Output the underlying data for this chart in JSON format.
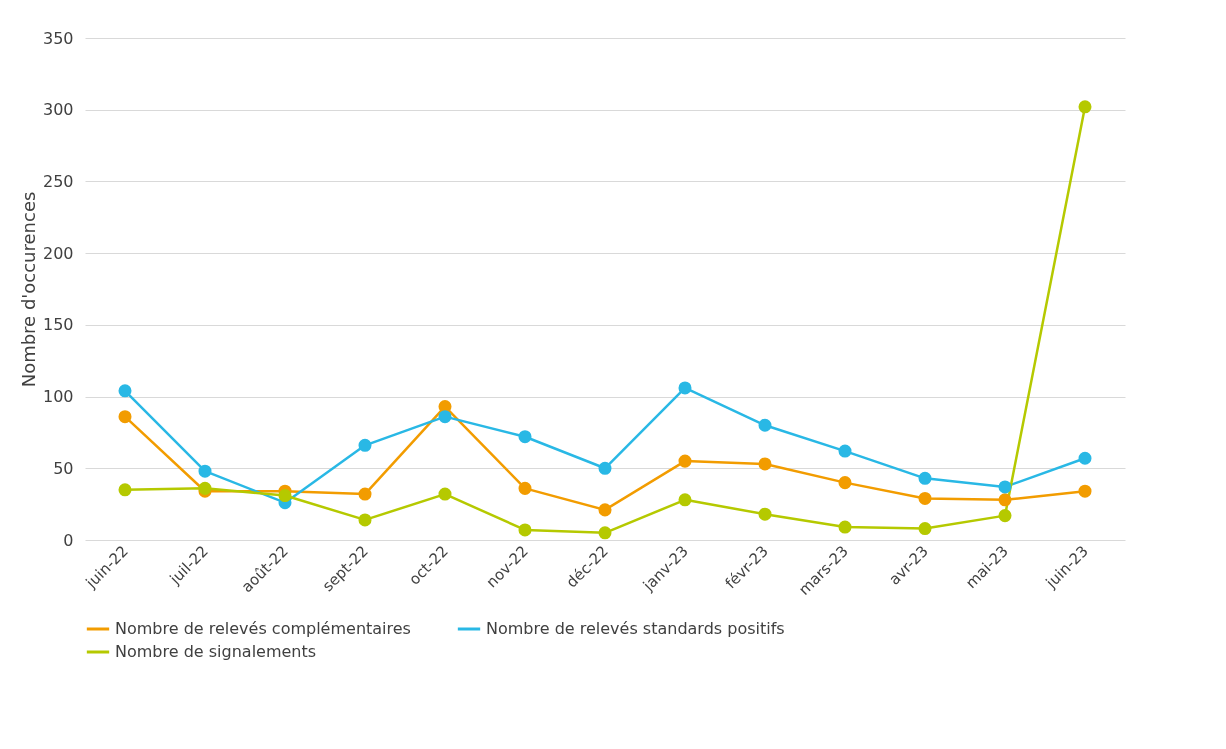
{
  "chart_data": {
    "type": "line",
    "ylabel": "Nombre d'occurences",
    "categories": [
      "juin-22",
      "juil-22",
      "août-22",
      "sept-22",
      "oct-22",
      "nov-22",
      "déc-22",
      "janv-23",
      "févr-23",
      "mars-23",
      "avr-23",
      "mai-23",
      "juin-23"
    ],
    "series": [
      {
        "name": "Nombre de relevés complémentaires",
        "color": "#f29c00",
        "values": [
          86,
          34,
          34,
          32,
          93,
          36,
          21,
          55,
          53,
          40,
          29,
          28,
          34
        ]
      },
      {
        "name": "Nombre de relevés standards positifs",
        "color": "#29b8e5",
        "values": [
          104,
          48,
          26,
          66,
          86,
          72,
          50,
          106,
          80,
          62,
          43,
          37,
          57
        ]
      },
      {
        "name": "Nombre de signalements",
        "color": "#b5c900",
        "values": [
          35,
          36,
          31,
          14,
          32,
          7,
          5,
          28,
          18,
          9,
          8,
          17,
          302
        ]
      }
    ],
    "ylim": [
      0,
      350
    ],
    "yticks": [
      0,
      50,
      100,
      150,
      200,
      250,
      300,
      350
    ],
    "grid": "y",
    "legend": "bottom",
    "marker": "circle",
    "line_style": "solid"
  }
}
